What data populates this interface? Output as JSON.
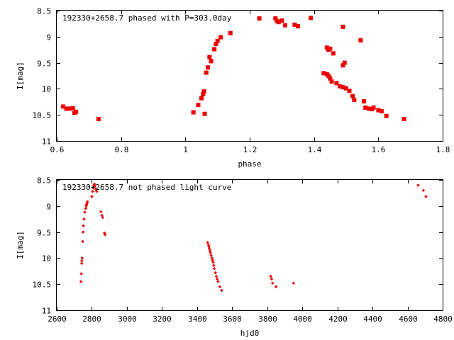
{
  "chart_data": [
    {
      "type": "scatter",
      "title": "192330+2658.7 phased with P=303.0day",
      "xlabel": "phase",
      "ylabel": "I[mag]",
      "xlim": [
        0.6,
        1.8
      ],
      "ylim": [
        8.5,
        11
      ],
      "y_inverted": true,
      "x_ticks": [
        "0.6",
        "0.8",
        "1",
        "1.2",
        "1.4",
        "1.6",
        "1.8"
      ],
      "y_ticks": [
        "8.5",
        "9",
        "9.5",
        "10",
        "10.5",
        "11"
      ],
      "grid": false,
      "marker": "large-square",
      "color": "#ee0000",
      "series": [
        {
          "x": [
            0.62,
            0.63,
            0.64,
            0.65,
            0.655,
            0.66,
            0.73,
            1.025,
            1.04,
            1.05,
            1.055,
            1.058,
            1.06,
            1.065,
            1.07,
            1.075,
            1.08,
            1.09,
            1.095,
            1.1,
            1.11,
            1.14,
            1.23,
            1.28,
            1.285,
            1.29,
            1.3,
            1.31,
            1.34,
            1.35,
            1.39,
            1.43,
            1.44,
            1.445,
            1.45,
            1.455,
            1.44,
            1.445,
            1.45,
            1.46,
            1.47,
            1.48,
            1.49,
            1.49,
            1.49,
            1.495,
            1.5,
            1.51,
            1.52,
            1.525,
            1.545,
            1.555,
            1.56,
            1.57,
            1.58,
            1.585,
            1.6,
            1.61,
            1.625,
            1.68
          ],
          "y": [
            10.34,
            10.38,
            10.38,
            10.37,
            10.46,
            10.44,
            10.58,
            10.45,
            10.31,
            10.18,
            10.1,
            10.05,
            10.48,
            9.69,
            9.59,
            9.39,
            9.47,
            9.24,
            9.14,
            9.08,
            9.01,
            8.93,
            8.65,
            8.65,
            8.7,
            8.72,
            8.69,
            8.78,
            8.77,
            8.8,
            8.64,
            9.7,
            9.72,
            9.75,
            9.8,
            9.86,
            9.21,
            9.25,
            9.23,
            9.32,
            9.89,
            9.95,
            9.97,
            8.81,
            9.55,
            9.5,
            9.99,
            10.04,
            10.14,
            10.21,
            9.07,
            10.24,
            10.36,
            10.38,
            10.39,
            10.36,
            10.41,
            10.43,
            10.52,
            10.58
          ]
        }
      ]
    },
    {
      "type": "scatter",
      "title": "192330+2658.7 not phased light curve",
      "xlabel": "hjd0",
      "ylabel": "I[mag]",
      "xlim": [
        2600,
        4800
      ],
      "ylim": [
        8.5,
        11
      ],
      "y_inverted": true,
      "x_ticks": [
        "2600",
        "2800",
        "3000",
        "3200",
        "3400",
        "3600",
        "3800",
        "4000",
        "4200",
        "4400",
        "4600",
        "4800"
      ],
      "y_ticks": [
        "8.5",
        "9",
        "9.5",
        "10",
        "10.5",
        "11"
      ],
      "grid": false,
      "marker": "small-diamond",
      "color": "#ee0000",
      "series": [
        {
          "x": [
            2738,
            2740,
            2742,
            2743,
            2745,
            2748,
            2750,
            2752,
            2755,
            2760,
            2765,
            2768,
            2771,
            2772,
            2775,
            2800,
            2805,
            2808,
            2812,
            2815,
            2818,
            2822,
            2828,
            2852,
            2858,
            2862,
            2872,
            2876,
            3460,
            3465,
            3468,
            3470,
            3474,
            3476,
            3480,
            3485,
            3488,
            3492,
            3495,
            3498,
            3505,
            3510,
            3515,
            3520,
            3530,
            3540,
            3820,
            3825,
            3830,
            3850,
            3950,
            4660,
            4690,
            4705
          ],
          "y": [
            10.45,
            10.3,
            10.1,
            10.05,
            10.0,
            9.68,
            9.5,
            9.38,
            9.25,
            9.12,
            9.05,
            9.0,
            8.97,
            8.95,
            8.92,
            8.82,
            8.72,
            8.65,
            8.6,
            8.58,
            8.62,
            8.68,
            8.72,
            9.11,
            9.18,
            9.22,
            9.52,
            9.55,
            9.7,
            9.75,
            9.78,
            9.82,
            9.86,
            9.9,
            9.95,
            10.0,
            10.04,
            10.08,
            10.14,
            10.2,
            10.28,
            10.35,
            10.4,
            10.45,
            10.55,
            10.62,
            10.35,
            10.4,
            10.48,
            10.55,
            10.48,
            8.6,
            8.7,
            8.82
          ]
        }
      ]
    }
  ]
}
